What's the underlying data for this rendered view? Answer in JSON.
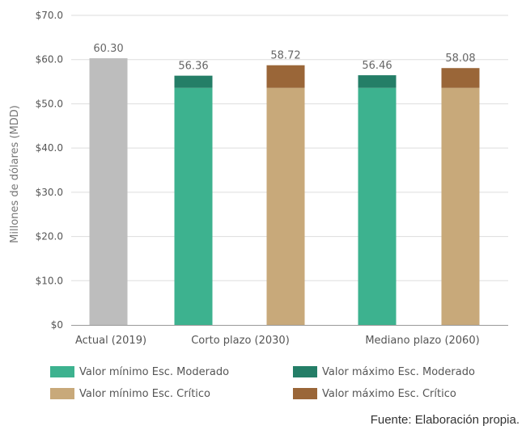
{
  "colors": {
    "actual": "#bdbdbd",
    "min_moderado": "#3db28f",
    "max_moderado": "#247e67",
    "min_critico": "#c8a97a",
    "max_critico": "#9a6638",
    "grid": "#dddddd",
    "axis": "#999999"
  },
  "chart_data": {
    "type": "bar",
    "stacked": true,
    "ylabel": "Millones de dólares (MDD)",
    "ylim": [
      0,
      70
    ],
    "yticks": [
      0,
      10,
      20,
      30,
      40,
      50,
      60,
      70
    ],
    "ytick_labels": [
      "$0",
      "$10.0",
      "$20.0",
      "$30.0",
      "$40.0",
      "$50.0",
      "$60.0",
      "$70.0"
    ],
    "grid": true,
    "legend_position": "bottom",
    "categories": [
      "Actual (2019)",
      "Corto plazo (2030)",
      "Mediano plazo (2060)"
    ],
    "bars": [
      {
        "category": "Actual (2019)",
        "segments": [
          {
            "key": "actual",
            "value": 60.3
          }
        ],
        "total_label": "60.30"
      },
      {
        "category": "Corto plazo (2030)",
        "segments": [
          {
            "key": "min_moderado",
            "value": 53.6
          },
          {
            "key": "max_moderado",
            "value": 2.76
          }
        ],
        "total_label": "56.36"
      },
      {
        "category": "Corto plazo (2030)",
        "segments": [
          {
            "key": "min_critico",
            "value": 53.6
          },
          {
            "key": "max_critico",
            "value": 5.12
          }
        ],
        "total_label": "58.72"
      },
      {
        "category": "Mediano plazo (2060)",
        "segments": [
          {
            "key": "min_moderado",
            "value": 53.6
          },
          {
            "key": "max_moderado",
            "value": 2.86
          }
        ],
        "total_label": "56.46"
      },
      {
        "category": "Mediano plazo (2060)",
        "segments": [
          {
            "key": "min_critico",
            "value": 53.6
          },
          {
            "key": "max_critico",
            "value": 4.48
          }
        ],
        "total_label": "58.08"
      }
    ],
    "legend": [
      {
        "key": "min_moderado",
        "label": "Valor mínimo Esc. Moderado"
      },
      {
        "key": "max_moderado",
        "label": "Valor máximo Esc. Moderado"
      },
      {
        "key": "min_critico",
        "label": "Valor mínimo Esc. Crítico"
      },
      {
        "key": "max_critico",
        "label": "Valor máximo Esc. Crítico"
      }
    ]
  },
  "source": "Fuente: Elaboración propia."
}
